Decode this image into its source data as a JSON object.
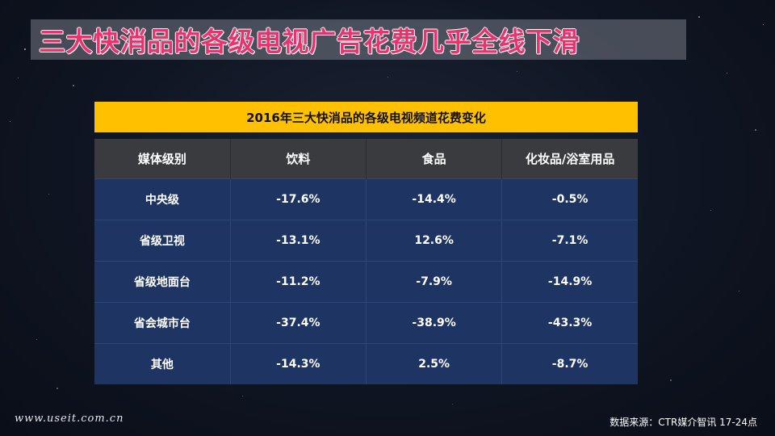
{
  "slide": {
    "title": "三大快消品的各级电视广告花费几乎全线下滑"
  },
  "table": {
    "caption": "2016年三大快消品的各级电视频道花费变化",
    "headers": [
      "媒体级别",
      "饮料",
      "食品",
      "化妆品/浴室用品"
    ],
    "rows": [
      [
        "中央级",
        "-17.6%",
        "-14.4%",
        "-0.5%"
      ],
      [
        "省级卫视",
        "-13.1%",
        "12.6%",
        "-7.1%"
      ],
      [
        "省级地面台",
        "-11.2%",
        "-7.9%",
        "-14.9%"
      ],
      [
        "省会城市台",
        "-37.4%",
        "-38.9%",
        "-43.3%"
      ],
      [
        "其他",
        "-14.3%",
        "2.5%",
        "-8.7%"
      ]
    ]
  },
  "footer": {
    "watermark": "www.useit.com.cn",
    "source": "数据来源：CTR媒介智讯  17-24点"
  },
  "colors": {
    "title_text": "#e8336d",
    "caption_bar": "#ffc000",
    "header_row": "#3a3b3f",
    "body_rows": "#1e3462"
  }
}
